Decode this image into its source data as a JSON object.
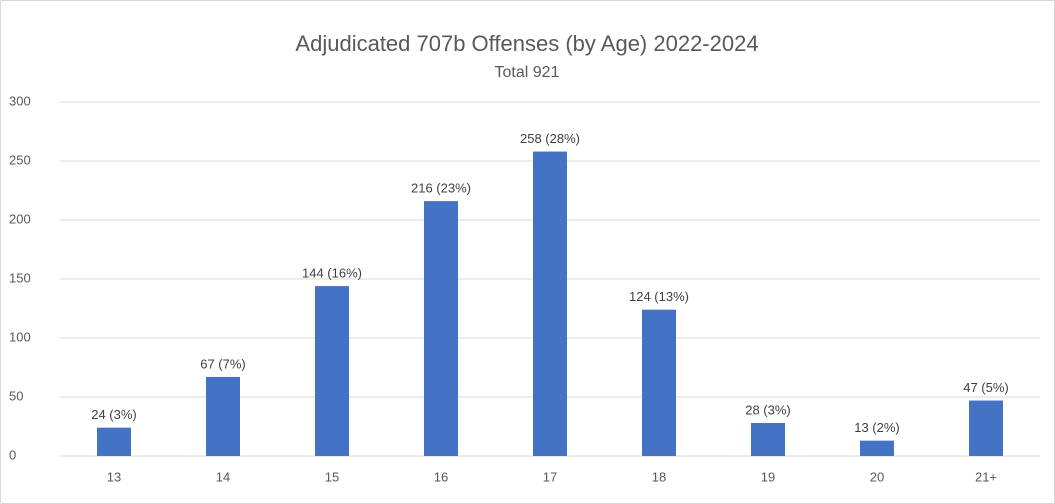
{
  "chart_data": {
    "type": "bar",
    "title": "Adjudicated 707b Offenses (by Age) 2022-2024",
    "subtitle": "Total 921",
    "categories": [
      "13",
      "14",
      "15",
      "16",
      "17",
      "18",
      "19",
      "20",
      "21+"
    ],
    "values": [
      24,
      67,
      144,
      216,
      258,
      124,
      28,
      13,
      47
    ],
    "value_labels": [
      "24 (3%)",
      "67 (7%)",
      "144 (16%)",
      "216 (23%)",
      "258 (28%)",
      "124 (13%)",
      "28 (3%)",
      "13 (2%)",
      "47 (5%)"
    ],
    "color": "#4472c4",
    "ylim": [
      0,
      300
    ],
    "yticks": [
      0,
      50,
      100,
      150,
      200,
      250,
      300
    ],
    "grid": true
  }
}
